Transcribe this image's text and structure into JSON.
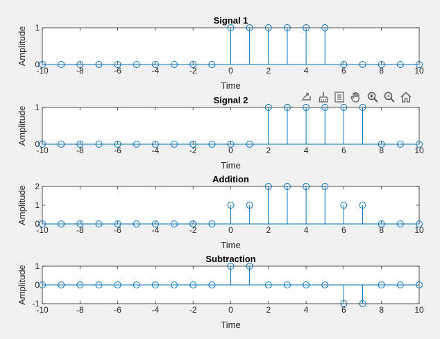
{
  "figure": {
    "background": "#f0f0f0",
    "stem_color": "#0072bd"
  },
  "toolbar": {
    "icons": [
      "export-icon",
      "brush-icon",
      "data-tips-icon",
      "pan-hand-icon",
      "zoom-in-icon",
      "zoom-out-icon",
      "home-icon"
    ]
  },
  "chart_data": [
    {
      "type": "stem",
      "title": "Signal 1",
      "xlabel": "Time",
      "ylabel": "Amplitude",
      "xlim": [
        -10,
        10
      ],
      "ylim": [
        0,
        1
      ],
      "xticks": [
        -10,
        -8,
        -6,
        -4,
        -2,
        0,
        2,
        4,
        6,
        8,
        10
      ],
      "yticks": [
        0,
        1
      ],
      "x": [
        -10,
        -9,
        -8,
        -7,
        -6,
        -5,
        -4,
        -3,
        -2,
        -1,
        0,
        1,
        2,
        3,
        4,
        5,
        6,
        7,
        8,
        9,
        10
      ],
      "values": [
        0,
        0,
        0,
        0,
        0,
        0,
        0,
        0,
        0,
        0,
        1,
        1,
        1,
        1,
        1,
        1,
        0,
        0,
        0,
        0,
        0
      ]
    },
    {
      "type": "stem",
      "title": "Signal 2",
      "xlabel": "Time",
      "ylabel": "Amplitude",
      "xlim": [
        -10,
        10
      ],
      "ylim": [
        0,
        1
      ],
      "xticks": [
        -10,
        -8,
        -6,
        -4,
        -2,
        0,
        2,
        4,
        6,
        8,
        10
      ],
      "yticks": [
        0,
        1
      ],
      "x": [
        -10,
        -9,
        -8,
        -7,
        -6,
        -5,
        -4,
        -3,
        -2,
        -1,
        0,
        1,
        2,
        3,
        4,
        5,
        6,
        7,
        8,
        9,
        10
      ],
      "values": [
        0,
        0,
        0,
        0,
        0,
        0,
        0,
        0,
        0,
        0,
        0,
        0,
        1,
        1,
        1,
        1,
        1,
        1,
        0,
        0,
        0
      ]
    },
    {
      "type": "stem",
      "title": "Addition",
      "xlabel": "Time",
      "ylabel": "Amplitude",
      "xlim": [
        -10,
        10
      ],
      "ylim": [
        0,
        2
      ],
      "xticks": [
        -10,
        -8,
        -6,
        -4,
        -2,
        0,
        2,
        4,
        6,
        8,
        10
      ],
      "yticks": [
        0,
        1,
        2
      ],
      "x": [
        -10,
        -9,
        -8,
        -7,
        -6,
        -5,
        -4,
        -3,
        -2,
        -1,
        0,
        1,
        2,
        3,
        4,
        5,
        6,
        7,
        8,
        9,
        10
      ],
      "values": [
        0,
        0,
        0,
        0,
        0,
        0,
        0,
        0,
        0,
        0,
        1,
        1,
        2,
        2,
        2,
        2,
        1,
        1,
        0,
        0,
        0
      ]
    },
    {
      "type": "stem",
      "title": "Subtraction",
      "xlabel": "Time",
      "ylabel": "Amplitude",
      "xlim": [
        -10,
        10
      ],
      "ylim": [
        -1,
        1
      ],
      "xticks": [
        -10,
        -8,
        -6,
        -4,
        -2,
        0,
        2,
        4,
        6,
        8,
        10
      ],
      "yticks": [
        -1,
        0,
        1
      ],
      "x": [
        -10,
        -9,
        -8,
        -7,
        -6,
        -5,
        -4,
        -3,
        -2,
        -1,
        0,
        1,
        2,
        3,
        4,
        5,
        6,
        7,
        8,
        9,
        10
      ],
      "values": [
        0,
        0,
        0,
        0,
        0,
        0,
        0,
        0,
        0,
        0,
        1,
        1,
        0,
        0,
        0,
        0,
        -1,
        -1,
        0,
        0,
        0
      ]
    }
  ]
}
